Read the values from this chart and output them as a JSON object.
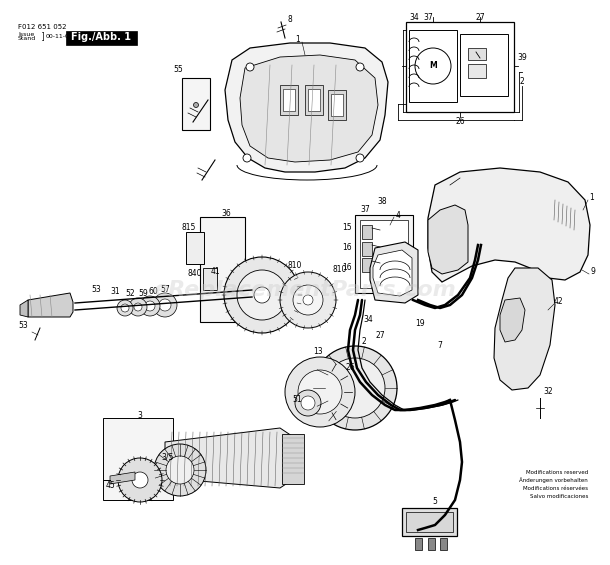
{
  "bg_color": "#ffffff",
  "header_text": "F012 651 052",
  "date_text": "00-11-06",
  "fig_label": "Fig./Abb. 1",
  "disclaimer": "Modifications reserved\nÄnderungen vorbehalten\nModifications réservées\nSalvo modificaciones",
  "watermark": "eReplacementParts.com",
  "watermark_color": "#cccccc",
  "lfs": 5.5,
  "lw_main": 0.7
}
